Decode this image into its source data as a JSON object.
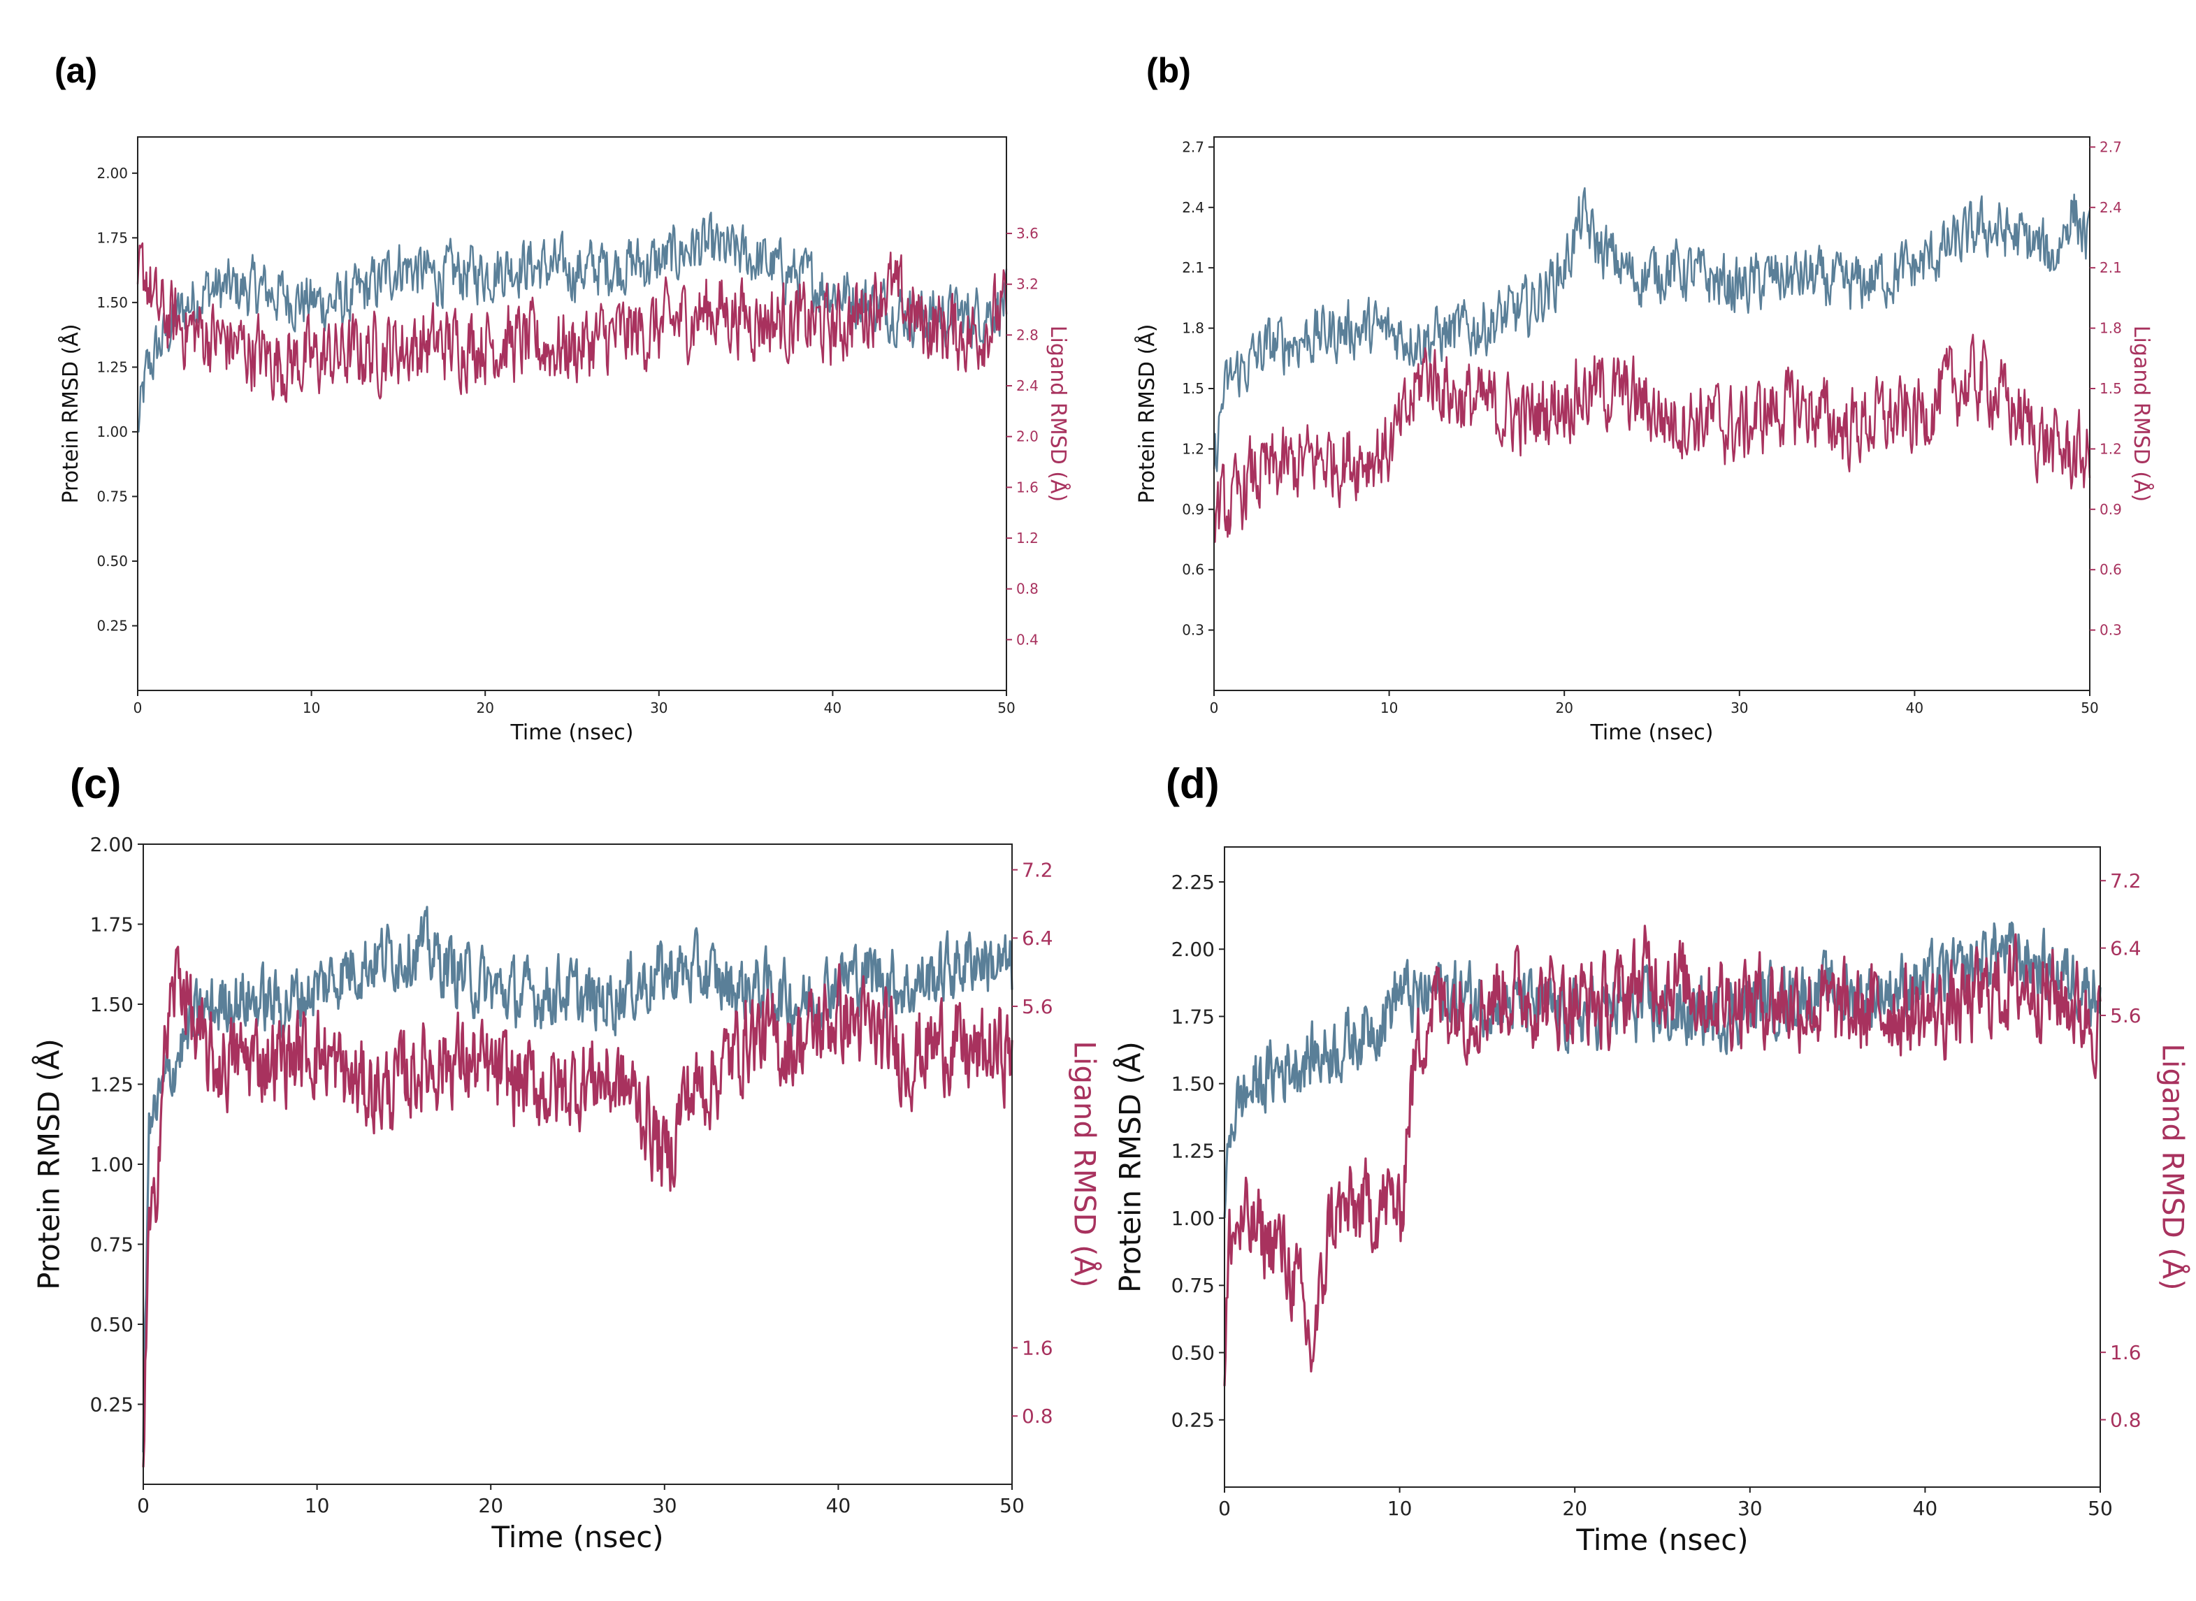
{
  "colors": {
    "protein": "#5a7f98",
    "ligand": "#a8325e",
    "axis": "#000000"
  },
  "chart_data": [
    {
      "panel": "(a)",
      "type": "line",
      "xlabel": "Time (nsec)",
      "ylabel": "Protein RMSD (Å)",
      "y2label": "Ligand RMSD (Å)",
      "xlim": [
        0,
        50
      ],
      "ylim": [
        0,
        2.14
      ],
      "y2lim": [
        0,
        4.36
      ],
      "xticks": [
        0,
        10,
        20,
        30,
        40,
        50
      ],
      "yticks": [
        0.25,
        0.5,
        0.75,
        1.0,
        1.25,
        1.5,
        1.75,
        2.0
      ],
      "ytick_labels": [
        "0.25",
        "0.50",
        "0.75",
        "1.00",
        "1.25",
        "1.50",
        "1.75",
        "2.00"
      ],
      "y2ticks": [
        0.4,
        0.8,
        1.2,
        1.6,
        2.0,
        2.4,
        2.8,
        3.2,
        3.6
      ],
      "y2tick_labels": [
        "0.4",
        "0.8",
        "1.2",
        "1.6",
        "2.0",
        "2.4",
        "2.8",
        "3.2",
        "3.6"
      ],
      "series": [
        {
          "name": "Protein RMSD",
          "axis": "left",
          "x": [
            0,
            0.5,
            1,
            2,
            3,
            4,
            5,
            7,
            10,
            12,
            14,
            15,
            17,
            20,
            22,
            25,
            28,
            30,
            32,
            35,
            38,
            40,
            42,
            45,
            48,
            50
          ],
          "values": [
            1.0,
            1.22,
            1.3,
            1.42,
            1.5,
            1.55,
            1.55,
            1.55,
            1.5,
            1.5,
            1.58,
            1.65,
            1.6,
            1.62,
            1.65,
            1.62,
            1.65,
            1.65,
            1.72,
            1.68,
            1.6,
            1.55,
            1.5,
            1.45,
            1.45,
            1.5
          ]
        },
        {
          "name": "Ligand RMSD",
          "axis": "right",
          "x": [
            0,
            0.5,
            1,
            2,
            4,
            6,
            8,
            10,
            12,
            15,
            20,
            25,
            28,
            30,
            33,
            35,
            38,
            40,
            42,
            43,
            45,
            48,
            50
          ],
          "values": [
            3.2,
            3.3,
            3.0,
            2.9,
            2.8,
            2.7,
            2.6,
            2.6,
            2.65,
            2.7,
            2.75,
            2.7,
            2.8,
            2.85,
            3.0,
            2.95,
            2.9,
            2.85,
            3.0,
            3.2,
            2.9,
            2.8,
            3.0
          ]
        }
      ]
    },
    {
      "panel": "(b)",
      "type": "line",
      "xlabel": "Time (nsec)",
      "ylabel": "Protein RMSD (Å)",
      "y2label": "Ligand RMSD (Å)",
      "xlim": [
        0,
        50
      ],
      "ylim": [
        0,
        2.75
      ],
      "y2lim": [
        0,
        2.75
      ],
      "xticks": [
        0,
        10,
        20,
        30,
        40,
        50
      ],
      "yticks": [
        0.3,
        0.6,
        0.9,
        1.2,
        1.5,
        1.8,
        2.1,
        2.4,
        2.7
      ],
      "ytick_labels": [
        "0.3",
        "0.6",
        "0.9",
        "1.2",
        "1.5",
        "1.8",
        "2.1",
        "2.4",
        "2.7"
      ],
      "y2ticks": [
        0.3,
        0.6,
        0.9,
        1.2,
        1.5,
        1.8,
        2.1,
        2.4,
        2.7
      ],
      "y2tick_labels": [
        "0.3",
        "0.6",
        "0.9",
        "1.2",
        "1.5",
        "1.8",
        "2.1",
        "2.4",
        "2.7"
      ],
      "series": [
        {
          "name": "Protein RMSD",
          "axis": "left",
          "x": [
            0,
            0.5,
            1,
            3,
            5,
            8,
            10,
            12,
            15,
            18,
            20,
            21,
            22,
            24,
            26,
            28,
            30,
            32,
            34,
            36,
            38,
            40,
            42,
            44,
            46,
            48,
            49,
            50
          ],
          "values": [
            1.1,
            1.45,
            1.55,
            1.7,
            1.75,
            1.8,
            1.78,
            1.75,
            1.8,
            1.9,
            2.1,
            2.35,
            2.2,
            2.05,
            2.1,
            2.05,
            2.0,
            2.05,
            2.05,
            2.0,
            2.05,
            2.1,
            2.2,
            2.3,
            2.25,
            2.15,
            2.4,
            2.2
          ]
        },
        {
          "name": "Ligand RMSD",
          "axis": "right",
          "x": [
            0,
            1,
            2,
            4,
            6,
            8,
            10,
            11,
            12,
            14,
            16,
            18,
            20,
            22,
            24,
            26,
            28,
            30,
            32,
            34,
            36,
            38,
            40,
            42,
            44,
            46,
            48,
            50
          ],
          "values": [
            0.9,
            0.9,
            1.05,
            1.1,
            1.15,
            1.15,
            1.2,
            1.35,
            1.6,
            1.45,
            1.4,
            1.35,
            1.45,
            1.5,
            1.45,
            1.35,
            1.35,
            1.3,
            1.4,
            1.4,
            1.3,
            1.35,
            1.35,
            1.5,
            1.55,
            1.35,
            1.2,
            1.15
          ]
        }
      ]
    },
    {
      "panel": "(c)",
      "type": "line",
      "xlabel": "Time (nsec)",
      "ylabel": "Protein RMSD (Å)",
      "y2label": "Ligand RMSD (Å)",
      "xlim": [
        0,
        50
      ],
      "ylim": [
        0,
        2.0
      ],
      "y2lim": [
        0,
        7.5
      ],
      "xticks": [
        0,
        10,
        20,
        30,
        40,
        50
      ],
      "yticks": [
        0.25,
        0.5,
        0.75,
        1.0,
        1.25,
        1.5,
        1.75,
        2.0
      ],
      "ytick_labels": [
        "0.25",
        "0.50",
        "0.75",
        "1.00",
        "1.25",
        "1.50",
        "1.75",
        "2.00"
      ],
      "y2ticks": [
        0.8,
        1.6,
        5.6,
        6.4,
        7.2
      ],
      "y2tick_labels": [
        "0.8",
        "1.6",
        "5.6",
        "6.4",
        "7.2"
      ],
      "series": [
        {
          "name": "Protein RMSD",
          "axis": "left",
          "x": [
            0,
            0.3,
            1,
            2,
            3,
            5,
            8,
            10,
            12,
            14,
            16,
            18,
            20,
            22,
            24,
            26,
            28,
            30,
            32,
            34,
            36,
            38,
            40,
            42,
            44,
            46,
            48,
            50
          ],
          "values": [
            0.1,
            1.1,
            1.2,
            1.35,
            1.45,
            1.52,
            1.5,
            1.55,
            1.62,
            1.65,
            1.68,
            1.6,
            1.55,
            1.52,
            1.55,
            1.5,
            1.55,
            1.6,
            1.6,
            1.55,
            1.55,
            1.5,
            1.58,
            1.6,
            1.55,
            1.6,
            1.65,
            1.6
          ]
        },
        {
          "name": "Ligand RMSD",
          "axis": "right",
          "x": [
            0,
            0.3,
            0.6,
            1,
            1.5,
            2,
            2.5,
            3,
            4,
            6,
            8,
            10,
            12,
            14,
            16,
            18,
            20,
            22,
            24,
            26,
            28,
            29,
            30,
            30.5,
            31,
            33,
            35,
            37,
            40,
            42,
            44,
            46,
            48,
            50
          ],
          "values": [
            0.2,
            2.8,
            3.0,
            4.5,
            5.5,
            6.0,
            5.8,
            5.2,
            4.9,
            5.0,
            5.0,
            5.1,
            4.7,
            4.6,
            4.9,
            5.0,
            4.8,
            4.7,
            4.6,
            4.8,
            4.6,
            4.3,
            3.8,
            4.0,
            4.5,
            4.8,
            5.3,
            5.1,
            5.5,
            5.3,
            5.0,
            5.2,
            5.0,
            5.1
          ]
        }
      ]
    },
    {
      "panel": "(d)",
      "type": "line",
      "xlabel": "Time (nsec)",
      "ylabel": "Protein RMSD (Å)",
      "y2label": "Ligand RMSD (Å)",
      "xlim": [
        0,
        50
      ],
      "ylim": [
        0,
        2.38
      ],
      "y2lim": [
        0,
        7.6
      ],
      "xticks": [
        0,
        10,
        20,
        30,
        40,
        50
      ],
      "yticks": [
        0.25,
        0.5,
        0.75,
        1.0,
        1.25,
        1.5,
        1.75,
        2.0,
        2.25
      ],
      "ytick_labels": [
        "0.25",
        "0.50",
        "0.75",
        "1.00",
        "1.25",
        "1.50",
        "1.75",
        "2.00",
        "2.25"
      ],
      "y2ticks": [
        0.8,
        1.6,
        5.6,
        6.4,
        7.2
      ],
      "y2tick_labels": [
        "0.8",
        "1.6",
        "5.6",
        "6.4",
        "7.2"
      ],
      "series": [
        {
          "name": "Protein RMSD",
          "axis": "left",
          "x": [
            0,
            0.3,
            1,
            2,
            3,
            5,
            7,
            9,
            10,
            11,
            12,
            14,
            16,
            18,
            20,
            22,
            24,
            26,
            28,
            30,
            32,
            34,
            36,
            38,
            40,
            42,
            44,
            46,
            48,
            50
          ],
          "values": [
            1.0,
            1.35,
            1.45,
            1.5,
            1.55,
            1.6,
            1.65,
            1.75,
            1.85,
            1.8,
            1.85,
            1.82,
            1.8,
            1.78,
            1.75,
            1.78,
            1.78,
            1.75,
            1.75,
            1.8,
            1.82,
            1.85,
            1.82,
            1.85,
            1.88,
            1.9,
            2.0,
            1.95,
            1.9,
            1.85
          ]
        },
        {
          "name": "Ligand RMSD",
          "axis": "right",
          "x": [
            0,
            0.3,
            1,
            2,
            3,
            4,
            4.5,
            5,
            5.5,
            6,
            8,
            9.8,
            10,
            10.5,
            11,
            11.5,
            12,
            14,
            16,
            18,
            20,
            22,
            24,
            26,
            28,
            30,
            32,
            34,
            36,
            38,
            40,
            42,
            44,
            46,
            48,
            50
          ],
          "values": [
            1.2,
            3.0,
            3.1,
            3.0,
            2.9,
            2.5,
            2.0,
            1.6,
            2.2,
            3.2,
            3.3,
            3.4,
            3.0,
            4.5,
            5.2,
            5.6,
            5.8,
            5.7,
            5.9,
            5.8,
            5.8,
            5.7,
            6.1,
            6.0,
            5.8,
            5.8,
            5.8,
            5.7,
            5.6,
            5.7,
            5.6,
            5.7,
            5.9,
            6.0,
            5.8,
            5.5
          ]
        }
      ]
    }
  ]
}
